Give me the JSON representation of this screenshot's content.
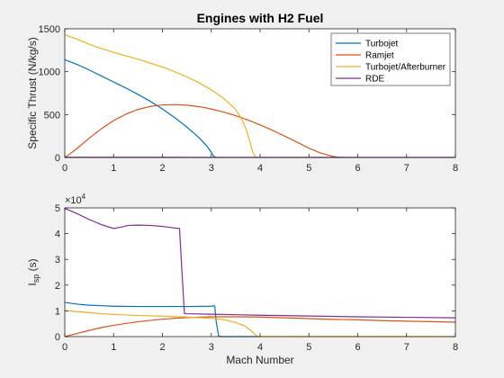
{
  "figure": {
    "background": "#f0f0f0",
    "axes_background": "#ffffff"
  },
  "chart_data": [
    {
      "type": "line",
      "title": "Engines with H2 Fuel",
      "xlabel": "",
      "ylabel": "Specific Thrust (N/kg/s)",
      "xlim": [
        0,
        8
      ],
      "ylim": [
        0,
        1500
      ],
      "xticks": [
        0,
        1,
        2,
        3,
        4,
        5,
        6,
        7,
        8
      ],
      "yticks": [
        0,
        500,
        1000,
        1500
      ],
      "xtick_labels": [
        "0",
        "1",
        "2",
        "3",
        "4",
        "5",
        "6",
        "7",
        "8"
      ],
      "ytick_labels": [
        "0",
        "500",
        "1000",
        "1500"
      ],
      "grid": false,
      "legend": "top-right",
      "series": [
        {
          "name": "Turbojet",
          "color": "#0072bd",
          "x": [
            0,
            0.25,
            0.5,
            0.75,
            1.0,
            1.25,
            1.5,
            1.75,
            2.0,
            2.25,
            2.5,
            2.75,
            2.9,
            3.0,
            3.05,
            3.1
          ],
          "y": [
            1140,
            1085,
            1020,
            950,
            880,
            810,
            735,
            655,
            565,
            465,
            355,
            230,
            140,
            60,
            15,
            0
          ]
        },
        {
          "name": "Ramjet",
          "color": "#d95319",
          "x": [
            0,
            0.1,
            0.25,
            0.5,
            0.75,
            1.0,
            1.25,
            1.5,
            1.75,
            2.0,
            2.25,
            2.5,
            2.75,
            3.0,
            3.25,
            3.5,
            3.75,
            4.0,
            4.25,
            4.5,
            4.75,
            5.0,
            5.25,
            5.5,
            5.6,
            5.7
          ],
          "y": [
            0,
            40,
            105,
            225,
            335,
            430,
            505,
            560,
            595,
            613,
            617,
            610,
            593,
            565,
            530,
            487,
            437,
            380,
            318,
            250,
            180,
            108,
            50,
            12,
            3,
            0
          ]
        },
        {
          "name": "Turbojet/Afterburner",
          "color": "#edb120",
          "x": [
            0,
            0.25,
            0.5,
            0.75,
            1.0,
            1.25,
            1.5,
            1.75,
            2.0,
            2.25,
            2.5,
            2.75,
            3.0,
            3.25,
            3.5,
            3.6,
            3.7,
            3.8,
            3.85,
            3.9,
            3.95
          ],
          "y": [
            1430,
            1380,
            1320,
            1270,
            1225,
            1185,
            1145,
            1100,
            1055,
            1000,
            940,
            870,
            790,
            690,
            560,
            470,
            350,
            170,
            60,
            10,
            0
          ]
        },
        {
          "name": "RDE",
          "color": "#7e2f8e",
          "x": [
            0,
            1,
            2,
            2.5,
            3,
            4,
            5,
            6,
            7,
            8
          ],
          "y": [
            3,
            3,
            3,
            2,
            2,
            1,
            1,
            1,
            1,
            1
          ]
        }
      ]
    },
    {
      "type": "line",
      "title": "",
      "xlabel": "Mach Number",
      "ylabel": "I",
      "ylabel_subscript": "sp",
      "ylabel_suffix": " (s)",
      "exponent_label": "×10",
      "exponent_power": "4",
      "xlim": [
        0,
        8
      ],
      "ylim": [
        0,
        5
      ],
      "xticks": [
        0,
        1,
        2,
        3,
        4,
        5,
        6,
        7,
        8
      ],
      "yticks": [
        0,
        1,
        2,
        3,
        4,
        5
      ],
      "xtick_labels": [
        "0",
        "1",
        "2",
        "3",
        "4",
        "5",
        "6",
        "7",
        "8"
      ],
      "ytick_labels": [
        "0",
        "1",
        "2",
        "3",
        "4",
        "5"
      ],
      "grid": false,
      "series": [
        {
          "name": "Turbojet",
          "color": "#0072bd",
          "x": [
            0,
            0.25,
            0.5,
            0.75,
            1.0,
            1.5,
            2.0,
            2.5,
            3.0,
            3.07,
            3.1,
            3.15,
            3.2,
            4.0
          ],
          "y": [
            1.33,
            1.26,
            1.22,
            1.2,
            1.18,
            1.17,
            1.17,
            1.17,
            1.18,
            1.2,
            0.6,
            0.02,
            0,
            0
          ]
        },
        {
          "name": "Ramjet",
          "color": "#d95319",
          "x": [
            0,
            0.25,
            0.5,
            0.75,
            1.0,
            1.5,
            2.0,
            2.5,
            3.0,
            3.5,
            4.0,
            4.5,
            5.0,
            5.5,
            6.0,
            6.5,
            7.0,
            7.5,
            8.0
          ],
          "y": [
            0,
            0.12,
            0.24,
            0.35,
            0.44,
            0.58,
            0.68,
            0.74,
            0.77,
            0.77,
            0.76,
            0.73,
            0.7,
            0.67,
            0.65,
            0.62,
            0.6,
            0.58,
            0.56
          ]
        },
        {
          "name": "Turbojet/Afterburner",
          "color": "#edb120",
          "x": [
            0,
            0.25,
            0.5,
            0.75,
            1.0,
            1.5,
            2.0,
            2.5,
            3.0,
            3.25,
            3.5,
            3.7,
            3.8,
            3.9,
            3.95,
            4.0,
            5.0,
            6.0,
            7.0,
            8.0
          ],
          "y": [
            1.01,
            0.97,
            0.93,
            0.89,
            0.86,
            0.82,
            0.79,
            0.76,
            0.71,
            0.66,
            0.55,
            0.4,
            0.25,
            0.08,
            0.01,
            0,
            0,
            0,
            0,
            0
          ]
        },
        {
          "name": "RDE",
          "color": "#7e2f8e",
          "x": [
            0,
            0.25,
            0.5,
            0.75,
            1.0,
            1.15,
            1.3,
            1.5,
            1.75,
            2.0,
            2.25,
            2.35,
            2.4,
            2.45,
            2.5,
            3.0,
            3.5,
            4.0,
            5.0,
            6.0,
            7.0,
            8.0
          ],
          "y": [
            4.98,
            4.78,
            4.55,
            4.35,
            4.2,
            4.25,
            4.32,
            4.33,
            4.32,
            4.28,
            4.22,
            4.2,
            2.5,
            0.9,
            0.89,
            0.87,
            0.85,
            0.83,
            0.8,
            0.77,
            0.75,
            0.73
          ]
        }
      ]
    }
  ]
}
